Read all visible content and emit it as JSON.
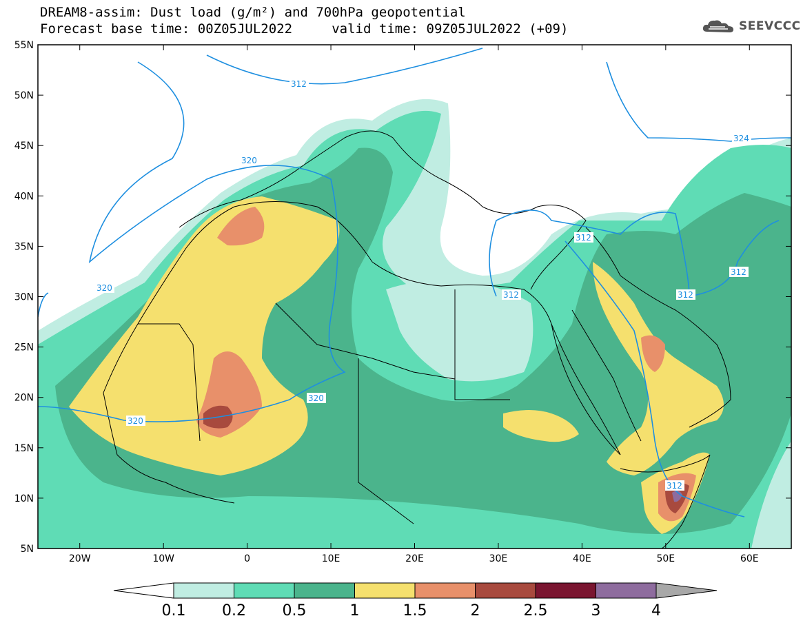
{
  "header": {
    "title_line1": "DREAM8-assim: Dust load (g/m²) and 700hPa geopotential",
    "title_line2": "Forecast base time: 00Z05JUL2022     valid time: 09Z05JUL2022 (+09)",
    "logo_text": "SEEVCCC"
  },
  "map": {
    "lon_range": [
      -25,
      65
    ],
    "lat_range": [
      5,
      55
    ],
    "lat_ticks": [
      "55N",
      "50N",
      "45N",
      "40N",
      "35N",
      "30N",
      "25N",
      "20N",
      "15N",
      "10N",
      "5N"
    ],
    "lon_ticks": [
      "20W",
      "10W",
      "0",
      "10E",
      "20E",
      "30E",
      "40E",
      "50E",
      "60E"
    ],
    "geopotential_labels": [
      "312",
      "320",
      "320",
      "320",
      "320",
      "312",
      "312",
      "312",
      "312",
      "312",
      "312",
      "324"
    ],
    "contour_color": "#1e8fe0"
  },
  "legend": {
    "levels": [
      "0.1",
      "0.2",
      "0.5",
      "1",
      "1.5",
      "2",
      "2.5",
      "3",
      "4"
    ],
    "colors": [
      "#c0ede2",
      "#5fdcb5",
      "#4bb48c",
      "#f5e06e",
      "#e8906a",
      "#a84a3e",
      "#7a1530",
      "#8e6c9e"
    ],
    "below_color": "#ffffff",
    "above_color": "#a8a8a8"
  }
}
